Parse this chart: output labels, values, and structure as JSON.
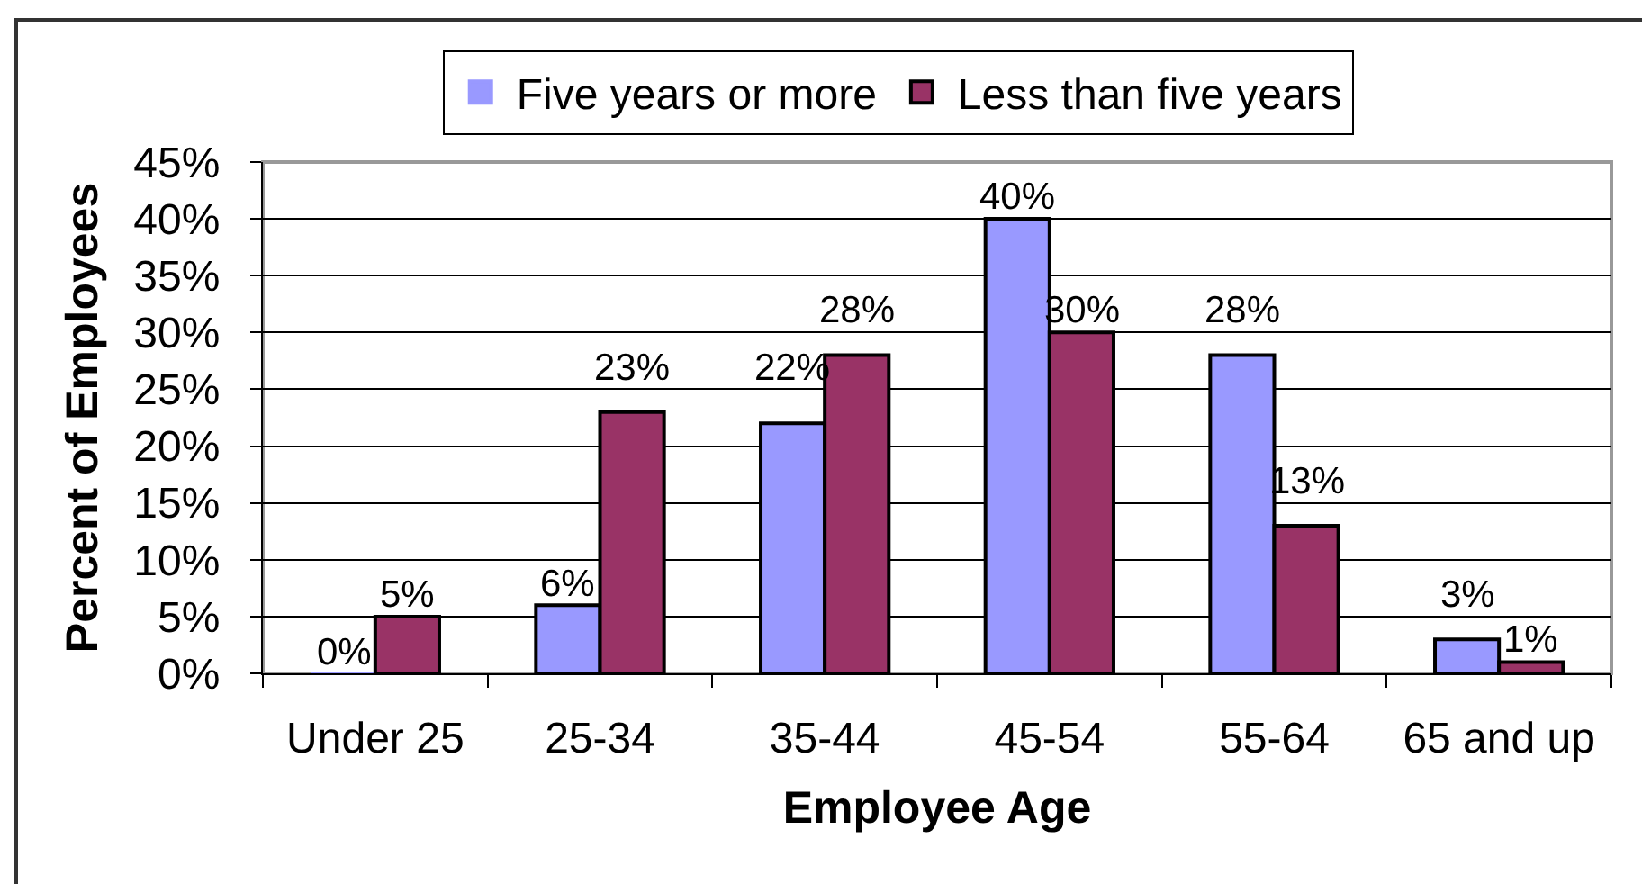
{
  "chart_data": {
    "type": "bar",
    "xlabel": "Employee Age",
    "ylabel": "Percent of Employees",
    "categories": [
      "Under 25",
      "25-34",
      "35-44",
      "45-54",
      "55-64",
      "65 and up"
    ],
    "series": [
      {
        "name": "Five years or more",
        "color": "#9999ff",
        "values": [
          0,
          6,
          22,
          40,
          28,
          3
        ],
        "value_labels": [
          "0%",
          "6%",
          "22%",
          "40%",
          "28%",
          "3%"
        ]
      },
      {
        "name": "Less than five years",
        "color": "#993366",
        "values": [
          5,
          23,
          28,
          30,
          13,
          1
        ],
        "value_labels": [
          "5%",
          "23%",
          "28%",
          "30%",
          "13%",
          "1%"
        ]
      }
    ],
    "ylim": [
      0,
      45
    ],
    "yticks": [
      {
        "value": 0,
        "label": "0%"
      },
      {
        "value": 5,
        "label": "5%"
      },
      {
        "value": 10,
        "label": "10%"
      },
      {
        "value": 15,
        "label": "15%"
      },
      {
        "value": 20,
        "label": "20%"
      },
      {
        "value": 25,
        "label": "25%"
      },
      {
        "value": 30,
        "label": "30%"
      },
      {
        "value": 35,
        "label": "35%"
      },
      {
        "value": 40,
        "label": "40%"
      },
      {
        "value": 45,
        "label": "45%"
      }
    ],
    "grid": "y",
    "legend": "top"
  }
}
